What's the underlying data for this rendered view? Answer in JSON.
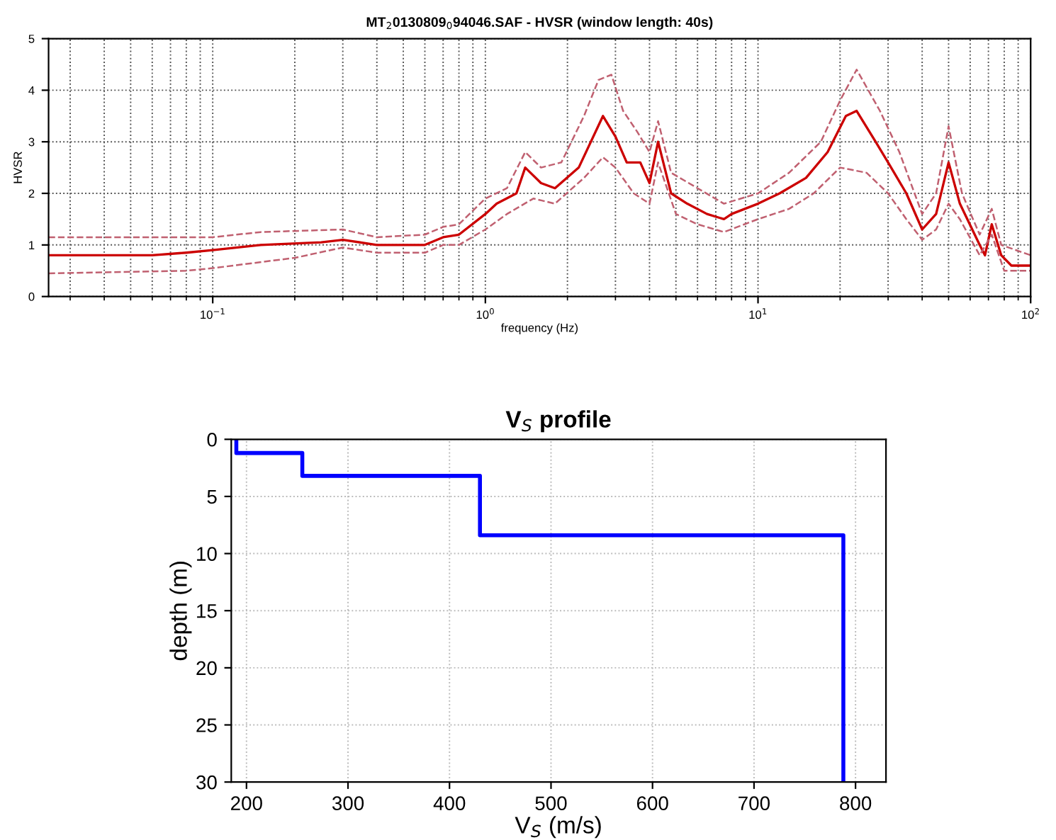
{
  "chart_data": [
    {
      "type": "line",
      "title": "MT$_{2}$0130809$_{0}$94046.SAF - HVSR (window length: 40s)",
      "xlabel": "frequency (Hz)",
      "ylabel": "HVSR",
      "log": "x",
      "xlim": [
        0.025,
        100
      ],
      "xticks": [
        {
          "value": 0.1,
          "label": "10$^{−1}$"
        },
        {
          "value": 1,
          "label": "10$^{0}$"
        },
        {
          "value": 10,
          "label": "10$^{1}$"
        },
        {
          "value": 100,
          "label": "10$^{2}$"
        }
      ],
      "ylim": [
        0,
        5
      ],
      "yticks": [
        0,
        1,
        2,
        3,
        4,
        5
      ],
      "grid": true,
      "series": [
        {
          "color": "#cc0000",
          "line_style": "solid",
          "x": [
            0.025,
            0.06,
            0.08,
            0.1,
            0.15,
            0.25,
            0.3,
            0.4,
            0.6,
            0.7,
            0.8,
            1.0,
            1.1,
            1.3,
            1.4,
            1.6,
            1.8,
            2.2,
            2.7,
            3.0,
            3.3,
            3.7,
            4.0,
            4.3,
            4.8,
            5.5,
            6.5,
            7.5,
            8,
            10,
            12,
            15,
            18,
            21,
            23,
            27,
            30,
            35,
            40,
            45,
            50,
            55,
            65,
            68,
            72,
            78,
            85,
            100
          ],
          "values": [
            0.8,
            0.8,
            0.85,
            0.9,
            1.0,
            1.05,
            1.1,
            1.0,
            1.0,
            1.15,
            1.2,
            1.6,
            1.8,
            2.0,
            2.5,
            2.2,
            2.1,
            2.5,
            3.5,
            3.1,
            2.6,
            2.6,
            2.2,
            3.0,
            2.0,
            1.8,
            1.6,
            1.5,
            1.6,
            1.8,
            2.0,
            2.3,
            2.8,
            3.5,
            3.6,
            3.0,
            2.6,
            2.0,
            1.3,
            1.6,
            2.6,
            1.8,
            1.0,
            0.8,
            1.4,
            0.8,
            0.6,
            0.6
          ]
        },
        {
          "color": "#c06070",
          "line_style": "dashed",
          "x": [
            0.025,
            0.1,
            0.15,
            0.3,
            0.4,
            0.6,
            0.7,
            0.8,
            1.0,
            1.2,
            1.4,
            1.6,
            1.9,
            2.3,
            2.6,
            2.9,
            3.2,
            3.6,
            4.0,
            4.3,
            4.8,
            6,
            7.5,
            10,
            13,
            17,
            20,
            23,
            28,
            33,
            40,
            45,
            50,
            56,
            65,
            72,
            78,
            100
          ],
          "values": [
            1.15,
            1.15,
            1.25,
            1.3,
            1.15,
            1.2,
            1.35,
            1.4,
            1.9,
            2.1,
            2.8,
            2.5,
            2.6,
            3.5,
            4.2,
            4.3,
            3.6,
            3.2,
            2.8,
            3.4,
            2.4,
            2.1,
            1.8,
            2.0,
            2.4,
            3.0,
            3.8,
            4.4,
            3.6,
            2.8,
            1.6,
            2.0,
            3.3,
            2.0,
            1.2,
            1.7,
            1.0,
            0.8
          ]
        },
        {
          "color": "#c06070",
          "line_style": "dashed",
          "x": [
            0.025,
            0.08,
            0.1,
            0.2,
            0.3,
            0.4,
            0.6,
            0.7,
            0.8,
            1.0,
            1.2,
            1.5,
            1.8,
            2.3,
            2.7,
            3.0,
            3.5,
            4.0,
            4.3,
            5,
            6,
            7.5,
            10,
            13,
            16,
            20,
            25,
            30,
            35,
            40,
            45,
            50,
            55,
            65,
            72,
            80,
            100
          ],
          "values": [
            0.45,
            0.5,
            0.55,
            0.75,
            0.95,
            0.85,
            0.85,
            1.0,
            1.0,
            1.3,
            1.6,
            1.9,
            1.8,
            2.3,
            2.7,
            2.5,
            2.0,
            1.8,
            2.6,
            1.6,
            1.4,
            1.25,
            1.5,
            1.7,
            2.0,
            2.5,
            2.4,
            2.0,
            1.5,
            1.1,
            1.3,
            1.8,
            1.5,
            0.8,
            1.2,
            0.5,
            0.5
          ]
        }
      ]
    },
    {
      "type": "line",
      "title": "V$_{S}$ profile",
      "xlabel": "V$_{S}$ (m/s)",
      "ylabel": "depth (m)",
      "xlim": [
        185,
        830
      ],
      "xticks": [
        200,
        300,
        400,
        500,
        600,
        700,
        800
      ],
      "ylim": [
        30,
        0
      ],
      "yticks": [
        0,
        5,
        10,
        15,
        20,
        25,
        30
      ],
      "grid": true,
      "series": [
        {
          "color": "#0000ff",
          "line_style": "solid",
          "x": [
            190,
            190,
            255,
            255,
            430,
            430,
            788,
            788
          ],
          "values": [
            0,
            1.2,
            1.2,
            3.2,
            3.2,
            8.4,
            8.4,
            30
          ]
        }
      ]
    }
  ]
}
